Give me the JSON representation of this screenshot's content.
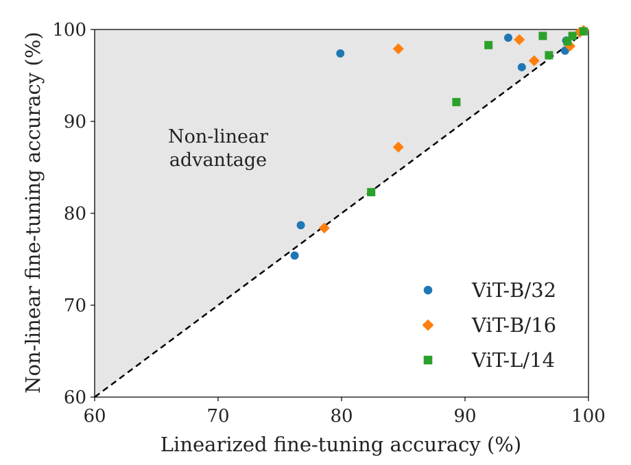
{
  "colors": {
    "region_fill": "#e6e6e6",
    "diagonal": "#000000"
  },
  "chart_data": {
    "type": "scatter",
    "xlabel": "Linearized fine-tuning accuracy (%)",
    "ylabel": "Non-linear fine-tuning accuracy (%)",
    "xlim": [
      60,
      100
    ],
    "ylim": [
      60,
      100
    ],
    "xticks": [
      60,
      70,
      80,
      90,
      100
    ],
    "yticks": [
      60,
      70,
      80,
      90,
      100
    ],
    "grid": false,
    "legend_position": "bottom-right",
    "annotation": [
      "Non-linear",
      "advantage"
    ],
    "reference_line": "y = x (dashed)",
    "series": [
      {
        "name": "ViT-B/32",
        "marker": "circle",
        "color": "#1f77b4",
        "points": [
          [
            76.2,
            75.4
          ],
          [
            76.7,
            78.7
          ],
          [
            79.9,
            97.4
          ],
          [
            93.5,
            99.1
          ],
          [
            94.6,
            95.9
          ],
          [
            98.1,
            97.7
          ],
          [
            98.2,
            98.8
          ],
          [
            99.5,
            99.8
          ]
        ]
      },
      {
        "name": "ViT-B/16",
        "marker": "diamond",
        "color": "#ff7f0e",
        "points": [
          [
            78.6,
            78.4
          ],
          [
            84.6,
            97.9
          ],
          [
            84.6,
            87.2
          ],
          [
            94.4,
            98.9
          ],
          [
            95.6,
            96.6
          ],
          [
            98.5,
            98.2
          ],
          [
            99.3,
            99.7
          ],
          [
            99.6,
            99.9
          ]
        ]
      },
      {
        "name": "ViT-L/14",
        "marker": "square",
        "color": "#2ca02c",
        "points": [
          [
            82.4,
            82.3
          ],
          [
            89.3,
            92.1
          ],
          [
            91.9,
            98.3
          ],
          [
            96.3,
            99.3
          ],
          [
            96.8,
            97.2
          ],
          [
            98.3,
            98.7
          ],
          [
            98.7,
            99.3
          ],
          [
            99.6,
            99.8
          ]
        ]
      }
    ]
  }
}
